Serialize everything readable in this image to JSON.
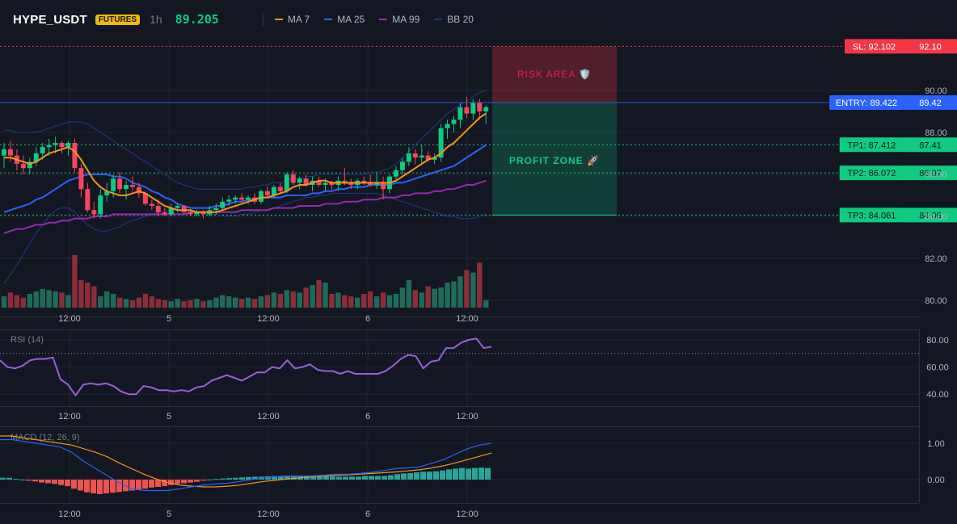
{
  "header": {
    "symbol": "HYPE_USDT",
    "badge": "FUTURES",
    "interval": "1h",
    "price": "89.205",
    "legend": [
      {
        "name": "MA 7",
        "color": "#f7931a"
      },
      {
        "name": "MA 25",
        "color": "#2962ff"
      },
      {
        "name": "MA 99",
        "color": "#9c27b0"
      },
      {
        "name": "BB 20",
        "color": "#1e3a8a"
      }
    ]
  },
  "zones": {
    "risk_label": "RISK AREA 🛡️",
    "profit_label": "PROFIT ZONE 🚀"
  },
  "price_tags": [
    {
      "label": "SL: 92.102",
      "value": "92.10",
      "price": 92.102,
      "color": "#f23645"
    },
    {
      "label": "ENTRY: 89.422",
      "value": "89.42",
      "price": 89.422,
      "color": "#2962ff"
    },
    {
      "label": "TP1: 87.412",
      "value": "87.41",
      "price": 87.412,
      "color": "#0ecb81"
    },
    {
      "label": "TP2: 86.072",
      "value": "86.07",
      "price": 86.072,
      "color": "#0ecb81"
    },
    {
      "label": "TP3: 84.061",
      "value": "84.06",
      "price": 84.061,
      "color": "#0ecb81"
    }
  ],
  "colors": {
    "up": "#0ecb81",
    "down": "#f6465d",
    "vol_up": "#1e6b5a",
    "vol_down": "#8b2e3a",
    "grid": "#1f2431",
    "axis_text": "#b2b5be",
    "rsi": "#9b5fd6",
    "macd": "#2962ff",
    "signal": "#f7931a",
    "hist_up": "#26a69a",
    "hist_down": "#ef5350"
  },
  "chart_data": [
    {
      "type": "candlestick",
      "title": "HYPE_USDT",
      "x_tick_labels": [
        "12:00",
        "5",
        "12:00",
        "6",
        "12:00"
      ],
      "y_tick_labels": [
        "80.00",
        "82.00",
        "84.00",
        "86.00",
        "88.00",
        "90.00"
      ],
      "ylim": [
        79.8,
        92.3
      ],
      "candles": [
        [
          86.9,
          87.5,
          86.3,
          87.2
        ],
        [
          87.2,
          87.6,
          86.6,
          86.9
        ],
        [
          86.9,
          87.2,
          86.2,
          86.5
        ],
        [
          86.5,
          86.9,
          86.0,
          86.3
        ],
        [
          86.3,
          86.8,
          86.0,
          86.6
        ],
        [
          86.6,
          87.3,
          86.4,
          87.0
        ],
        [
          87.0,
          87.5,
          86.7,
          87.3
        ],
        [
          87.3,
          87.7,
          86.9,
          87.4
        ],
        [
          87.4,
          87.8,
          87.0,
          87.5
        ],
        [
          87.5,
          87.6,
          87.0,
          87.3
        ],
        [
          87.3,
          87.6,
          86.9,
          87.5
        ],
        [
          87.5,
          87.7,
          86.1,
          86.3
        ],
        [
          86.3,
          86.5,
          84.9,
          85.3
        ],
        [
          85.3,
          85.6,
          84.2,
          84.3
        ],
        [
          84.3,
          84.7,
          83.9,
          84.1
        ],
        [
          84.1,
          85.3,
          83.9,
          85.0
        ],
        [
          85.0,
          85.6,
          84.7,
          85.2
        ],
        [
          85.2,
          86.0,
          84.9,
          85.8
        ],
        [
          85.8,
          86.1,
          85.1,
          85.3
        ],
        [
          85.3,
          85.7,
          84.8,
          85.5
        ],
        [
          85.5,
          85.9,
          85.2,
          85.4
        ],
        [
          85.4,
          85.6,
          84.9,
          85.1
        ],
        [
          85.1,
          85.2,
          84.5,
          84.6
        ],
        [
          84.6,
          84.8,
          84.3,
          84.5
        ],
        [
          84.5,
          84.8,
          84.0,
          84.2
        ],
        [
          84.2,
          84.4,
          84.0,
          84.1
        ],
        [
          84.1,
          84.6,
          84.0,
          84.4
        ],
        [
          84.4,
          84.6,
          84.2,
          84.5
        ],
        [
          84.5,
          84.5,
          84.1,
          84.2
        ],
        [
          84.2,
          84.3,
          84.0,
          84.1
        ],
        [
          84.1,
          84.3,
          84.0,
          84.2
        ],
        [
          84.2,
          84.3,
          83.9,
          84.1
        ],
        [
          84.1,
          84.5,
          84.0,
          84.3
        ],
        [
          84.3,
          84.6,
          84.1,
          84.4
        ],
        [
          84.4,
          84.9,
          84.3,
          84.7
        ],
        [
          84.7,
          85.0,
          84.5,
          84.8
        ],
        [
          84.8,
          85.0,
          84.6,
          84.9
        ],
        [
          84.9,
          85.1,
          84.7,
          84.8
        ],
        [
          84.8,
          85.0,
          84.6,
          84.9
        ],
        [
          84.9,
          85.1,
          84.6,
          84.7
        ],
        [
          84.7,
          85.3,
          84.6,
          85.2
        ],
        [
          85.2,
          85.4,
          84.9,
          85.0
        ],
        [
          85.0,
          85.5,
          84.9,
          85.4
        ],
        [
          85.4,
          85.6,
          85.1,
          85.2
        ],
        [
          85.2,
          86.1,
          85.1,
          86.0
        ],
        [
          86.0,
          86.2,
          85.5,
          85.6
        ],
        [
          85.6,
          85.9,
          85.3,
          85.8
        ],
        [
          85.8,
          86.0,
          85.4,
          85.5
        ],
        [
          85.5,
          85.9,
          85.2,
          85.7
        ],
        [
          85.7,
          85.9,
          85.4,
          85.5
        ],
        [
          85.5,
          85.8,
          85.2,
          85.6
        ],
        [
          85.6,
          85.7,
          85.3,
          85.5
        ],
        [
          85.5,
          85.9,
          85.2,
          85.7
        ],
        [
          85.7,
          86.3,
          85.5,
          85.6
        ],
        [
          85.6,
          85.8,
          85.3,
          85.5
        ],
        [
          85.5,
          85.8,
          85.3,
          85.7
        ],
        [
          85.7,
          85.9,
          85.5,
          85.6
        ],
        [
          85.6,
          86.0,
          85.4,
          85.5
        ],
        [
          85.5,
          86.1,
          85.3,
          85.6
        ],
        [
          85.6,
          85.9,
          84.8,
          85.3
        ],
        [
          85.3,
          86.0,
          85.1,
          85.9
        ],
        [
          85.9,
          86.4,
          85.7,
          86.2
        ],
        [
          86.2,
          86.8,
          86.0,
          86.6
        ],
        [
          86.6,
          87.3,
          86.4,
          87.0
        ],
        [
          87.0,
          87.2,
          86.5,
          86.8
        ],
        [
          86.8,
          87.4,
          86.5,
          86.9
        ],
        [
          86.9,
          87.1,
          86.6,
          86.7
        ],
        [
          86.7,
          87.0,
          86.5,
          86.8
        ],
        [
          86.8,
          88.4,
          86.6,
          88.2
        ],
        [
          88.2,
          88.6,
          87.7,
          88.4
        ],
        [
          88.4,
          88.8,
          88.0,
          88.6
        ],
        [
          88.6,
          89.4,
          88.2,
          89.2
        ],
        [
          89.2,
          89.7,
          88.7,
          88.9
        ],
        [
          88.9,
          89.6,
          88.6,
          89.4
        ],
        [
          89.4,
          89.6,
          88.6,
          89.0
        ],
        [
          89.0,
          89.3,
          88.4,
          89.2
        ]
      ],
      "volumes": [
        9,
        12,
        10,
        8,
        11,
        13,
        15,
        14,
        13,
        12,
        10,
        42,
        22,
        20,
        17,
        9,
        13,
        11,
        8,
        7,
        6,
        8,
        11,
        9,
        7,
        6,
        5,
        7,
        5,
        6,
        7,
        5,
        6,
        8,
        10,
        9,
        8,
        7,
        8,
        7,
        9,
        10,
        12,
        11,
        14,
        13,
        12,
        16,
        18,
        22,
        20,
        11,
        12,
        10,
        9,
        8,
        11,
        13,
        9,
        12,
        10,
        11,
        16,
        22,
        14,
        12,
        17,
        15,
        16,
        20,
        21,
        25,
        30,
        28,
        36,
        6
      ],
      "ma7": [
        86.8,
        86.8,
        86.7,
        86.6,
        86.5,
        86.6,
        86.8,
        87.0,
        87.1,
        87.2,
        87.3,
        87.1,
        86.7,
        86.2,
        85.7,
        85.4,
        85.2,
        85.1,
        85.0,
        85.0,
        85.1,
        85.2,
        85.1,
        84.9,
        84.7,
        84.5,
        84.4,
        84.3,
        84.3,
        84.3,
        84.2,
        84.2,
        84.2,
        84.2,
        84.3,
        84.4,
        84.5,
        84.6,
        84.7,
        84.8,
        84.9,
        84.9,
        85.0,
        85.1,
        85.2,
        85.4,
        85.5,
        85.5,
        85.6,
        85.7,
        85.7,
        85.6,
        85.6,
        85.6,
        85.6,
        85.6,
        85.6,
        85.6,
        85.6,
        85.6,
        85.6,
        85.7,
        85.9,
        86.1,
        86.3,
        86.5,
        86.7,
        86.8,
        87.0,
        87.3,
        87.5,
        87.8,
        88.1,
        88.4,
        88.7,
        88.9
      ],
      "ma25": [
        84.2,
        84.3,
        84.4,
        84.5,
        84.6,
        84.8,
        84.9,
        85.1,
        85.3,
        85.5,
        85.7,
        85.8,
        85.9,
        86.0,
        86.0,
        86.0,
        86.0,
        85.9,
        85.9,
        85.8,
        85.6,
        85.5,
        85.4,
        85.2,
        85.1,
        84.9,
        84.8,
        84.6,
        84.5,
        84.4,
        84.4,
        84.4,
        84.4,
        84.5,
        84.5,
        84.6,
        84.7,
        84.7,
        84.8,
        84.8,
        84.9,
        84.9,
        84.9,
        84.9,
        85.0,
        85.0,
        85.0,
        85.0,
        85.1,
        85.1,
        85.2,
        85.2,
        85.3,
        85.3,
        85.4,
        85.4,
        85.4,
        85.5,
        85.5,
        85.5,
        85.5,
        85.6,
        85.6,
        85.7,
        85.8,
        85.9,
        86.0,
        86.1,
        86.2,
        86.3,
        86.4,
        86.6,
        86.8,
        87.0,
        87.2,
        87.4
      ],
      "ma99": [
        83.2,
        83.3,
        83.4,
        83.4,
        83.5,
        83.6,
        83.6,
        83.7,
        83.7,
        83.8,
        83.8,
        83.9,
        83.9,
        83.9,
        84.0,
        84.0,
        84.0,
        84.1,
        84.1,
        84.1,
        84.1,
        84.1,
        84.1,
        84.1,
        84.1,
        84.1,
        84.1,
        84.1,
        84.1,
        84.2,
        84.2,
        84.2,
        84.2,
        84.2,
        84.2,
        84.2,
        84.2,
        84.3,
        84.3,
        84.3,
        84.3,
        84.3,
        84.4,
        84.4,
        84.4,
        84.4,
        84.5,
        84.5,
        84.5,
        84.5,
        84.6,
        84.6,
        84.6,
        84.7,
        84.7,
        84.7,
        84.8,
        84.8,
        84.8,
        84.9,
        84.9,
        84.9,
        85.0,
        85.0,
        85.1,
        85.1,
        85.1,
        85.2,
        85.2,
        85.3,
        85.3,
        85.4,
        85.5,
        85.5,
        85.6,
        85.7
      ],
      "bb_upper": [
        88.1,
        88.1,
        88.0,
        88.0,
        88.0,
        88.0,
        88.1,
        88.2,
        88.3,
        88.4,
        88.5,
        88.5,
        88.5,
        88.4,
        88.2,
        88.0,
        87.8,
        87.6,
        87.4,
        87.2,
        87.0,
        86.8,
        86.6,
        86.4,
        86.2,
        86.0,
        85.8,
        85.6,
        85.5,
        85.4,
        85.3,
        85.3,
        85.3,
        85.3,
        85.3,
        85.3,
        85.3,
        85.3,
        85.4,
        85.4,
        85.5,
        85.5,
        85.6,
        85.6,
        85.7,
        85.8,
        85.8,
        85.9,
        85.9,
        86.0,
        86.0,
        86.0,
        86.0,
        86.0,
        86.0,
        86.0,
        86.0,
        86.1,
        86.1,
        86.2,
        86.3,
        86.5,
        86.8,
        87.1,
        87.4,
        87.7,
        88.0,
        88.3,
        88.6,
        88.9,
        89.1,
        89.3,
        89.5,
        89.7,
        89.9,
        90.0
      ],
      "bb_lower": [
        80.8,
        81.2,
        81.7,
        82.2,
        82.7,
        83.2,
        83.6,
        84.0,
        84.3,
        84.4,
        84.4,
        84.2,
        83.9,
        83.6,
        83.4,
        83.3,
        83.3,
        83.4,
        83.5,
        83.7,
        83.8,
        83.9,
        84.0,
        84.1,
        84.2,
        84.3,
        84.3,
        84.3,
        84.3,
        84.3,
        84.2,
        84.1,
        84.1,
        84.1,
        84.0,
        84.0,
        84.0,
        84.1,
        84.1,
        84.2,
        84.3,
        84.3,
        84.4,
        84.5,
        84.6,
        84.7,
        84.8,
        84.9,
        84.9,
        85.0,
        85.0,
        85.1,
        85.1,
        85.1,
        85.1,
        85.1,
        85.1,
        85.1,
        85.1,
        85.0,
        84.9,
        84.8,
        84.7,
        84.6,
        84.5,
        84.4,
        84.3,
        84.2,
        84.1,
        84.0,
        84.0,
        83.9,
        83.9,
        83.9,
        84.0,
        84.1
      ]
    },
    {
      "type": "line",
      "title": "RSI (14)",
      "y_tick_labels": [
        "40.00",
        "60.00",
        "80.00"
      ],
      "ylim": [
        33,
        86
      ],
      "overbought": 70,
      "values": [
        65,
        60,
        59,
        61,
        65,
        66,
        66,
        67,
        51,
        47,
        39,
        47,
        48,
        47,
        48,
        46,
        42,
        40,
        40,
        46,
        45,
        43,
        43,
        42,
        43,
        42,
        45,
        46,
        50,
        52,
        54,
        52,
        50,
        53,
        56,
        56,
        60,
        59,
        65,
        59,
        60,
        62,
        58,
        57,
        57,
        55,
        57,
        55,
        55,
        55,
        55,
        57,
        61,
        66,
        69,
        68,
        59,
        64,
        65,
        74,
        74,
        78,
        80,
        81,
        74,
        75
      ]
    },
    {
      "type": "line",
      "title": "MACD (12, 26, 9)",
      "y_tick_labels": [
        "0.00",
        "1.00"
      ],
      "ylim": [
        -0.7,
        1.25
      ],
      "macd": [
        1.1,
        1.1,
        1.05,
        1.0,
        0.95,
        0.9,
        0.75,
        0.5,
        0.3,
        0.1,
        -0.1,
        -0.25,
        -0.3,
        -0.3,
        -0.3,
        -0.25,
        -0.2,
        -0.15,
        -0.12,
        -0.1,
        -0.05,
        0.0,
        0.05,
        0.08,
        0.1,
        0.1,
        0.1,
        0.12,
        0.15,
        0.15,
        0.17,
        0.2,
        0.25,
        0.3,
        0.32,
        0.35,
        0.45,
        0.55,
        0.7,
        0.85,
        0.95,
        1.0
      ],
      "signal": [
        1.2,
        1.2,
        1.15,
        1.1,
        1.05,
        1.0,
        0.95,
        0.85,
        0.75,
        0.62,
        0.45,
        0.3,
        0.15,
        0.02,
        -0.08,
        -0.15,
        -0.18,
        -0.2,
        -0.2,
        -0.18,
        -0.15,
        -0.1,
        -0.05,
        -0.02,
        0.02,
        0.05,
        0.08,
        0.1,
        0.12,
        0.13,
        0.15,
        0.17,
        0.19,
        0.21,
        0.24,
        0.27,
        0.32,
        0.38,
        0.46,
        0.55,
        0.64,
        0.73
      ],
      "histogram": [
        0.05,
        0.05,
        0.02,
        0.0,
        -0.03,
        -0.05,
        -0.08,
        -0.1,
        -0.12,
        -0.15,
        -0.18,
        -0.25,
        -0.3,
        -0.35,
        -0.38,
        -0.4,
        -0.38,
        -0.36,
        -0.34,
        -0.32,
        -0.3,
        -0.28,
        -0.25,
        -0.22,
        -0.2,
        -0.18,
        -0.15,
        -0.12,
        -0.1,
        -0.08,
        -0.06,
        -0.03,
        0.0,
        0.02,
        0.03,
        0.04,
        0.05,
        0.06,
        0.07,
        0.08,
        0.08,
        0.09,
        0.1,
        0.1,
        0.1,
        0.1,
        0.1,
        0.1,
        0.1,
        0.1,
        0.09,
        0.09,
        0.08,
        0.08,
        0.08,
        0.08,
        0.1,
        0.1,
        0.1,
        0.1,
        0.12,
        0.15,
        0.17,
        0.18,
        0.2,
        0.22,
        0.22,
        0.23,
        0.25,
        0.28,
        0.3,
        0.32,
        0.3,
        0.32,
        0.33,
        0.32
      ]
    }
  ]
}
